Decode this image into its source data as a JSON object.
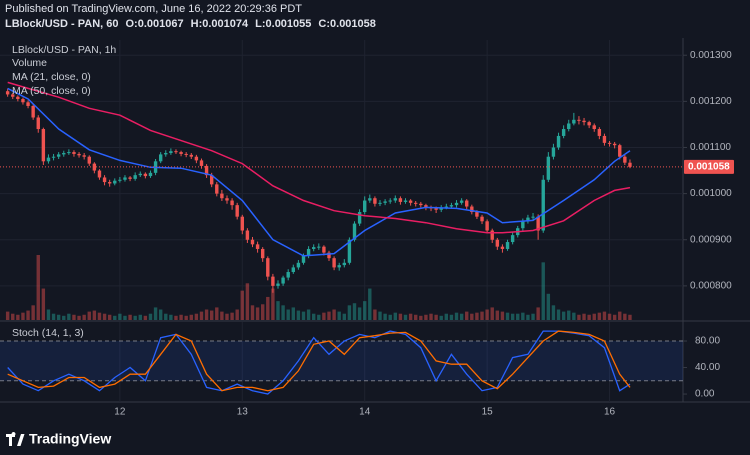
{
  "header": {
    "published": "Published on TradingView.com, June 16, 2022 20:29:36 PDT",
    "symbol": "LBlock/USD - PAN, 60",
    "ohlc": [
      {
        "key": "O:",
        "value": 0.001067
      },
      {
        "key": "H:",
        "value": 0.001074
      },
      {
        "key": "L:",
        "value": 0.001055
      },
      {
        "key": "C:",
        "value": 0.001058
      }
    ]
  },
  "footer": {
    "brand": "TradingView"
  },
  "chart_data": [
    {
      "type": "candlestick",
      "legend": "LBlock/USD - PAN, 1h",
      "volume_name": "Volume",
      "up_color": "#26a69a",
      "down_color": "#ef5350",
      "grid": true,
      "ylim": [
        0.000726,
        0.001333
      ],
      "yticks": [
        {
          "value": 0.0013,
          "label": "0.001300"
        },
        {
          "value": 0.0012,
          "label": "0.001200"
        },
        {
          "value": 0.0011,
          "label": "0.001100"
        },
        {
          "value": 0.001,
          "label": "0.001000"
        },
        {
          "value": 0.0009,
          "label": "0.000900"
        },
        {
          "value": 0.0008,
          "label": "0.000800"
        }
      ],
      "xlim": [
        -1.5,
        132.4
      ],
      "xticks": [
        {
          "value": 22,
          "label": "12"
        },
        {
          "value": 46,
          "label": "13"
        },
        {
          "value": 70,
          "label": "14"
        },
        {
          "value": 94,
          "label": "15"
        },
        {
          "value": 118,
          "label": "16"
        }
      ],
      "last_price": 0.001058,
      "ohlc": [
        [
          0.001222,
          0.001228,
          0.00121,
          0.001215
        ],
        [
          0.001215,
          0.001218,
          0.001205,
          0.00121
        ],
        [
          0.00121,
          0.001213,
          0.0012,
          0.001205
        ],
        [
          0.001205,
          0.001208,
          0.001193,
          0.001198
        ],
        [
          0.001198,
          0.001202,
          0.001185,
          0.00119
        ],
        [
          0.00119,
          0.001193,
          0.00116,
          0.001165
        ],
        [
          0.001165,
          0.00117,
          0.001132,
          0.00114
        ],
        [
          0.00114,
          0.001143,
          0.001062,
          0.00107
        ],
        [
          0.00107,
          0.001085,
          0.001065,
          0.001078
        ],
        [
          0.001078,
          0.001086,
          0.001072,
          0.00108
        ],
        [
          0.00108,
          0.00109,
          0.001075,
          0.001085
        ],
        [
          0.001085,
          0.001093,
          0.00108,
          0.001088
        ],
        [
          0.001088,
          0.001096,
          0.001084,
          0.00109
        ],
        [
          0.00109,
          0.001094,
          0.00108,
          0.001086
        ],
        [
          0.001086,
          0.00109,
          0.001078,
          0.001083
        ],
        [
          0.001083,
          0.001088,
          0.001074,
          0.00108
        ],
        [
          0.00108,
          0.001083,
          0.00106,
          0.001065
        ],
        [
          0.001065,
          0.001068,
          0.001044,
          0.00105
        ],
        [
          0.00105,
          0.001053,
          0.00103,
          0.001035
        ],
        [
          0.001035,
          0.00104,
          0.001018,
          0.001025
        ],
        [
          0.001025,
          0.00103,
          0.001015,
          0.001022
        ],
        [
          0.001022,
          0.001033,
          0.001018,
          0.001028
        ],
        [
          0.001028,
          0.001036,
          0.001024,
          0.00103
        ],
        [
          0.00103,
          0.00104,
          0.001026,
          0.001035
        ],
        [
          0.001035,
          0.001038,
          0.001027,
          0.001032
        ],
        [
          0.001032,
          0.001046,
          0.001028,
          0.00104
        ],
        [
          0.00104,
          0.001048,
          0.001036,
          0.001043
        ],
        [
          0.001043,
          0.001046,
          0.001033,
          0.001038
        ],
        [
          0.001038,
          0.00105,
          0.001034,
          0.001045
        ],
        [
          0.001045,
          0.001075,
          0.00104,
          0.00107
        ],
        [
          0.00107,
          0.00109,
          0.001066,
          0.001085
        ],
        [
          0.001085,
          0.001094,
          0.00108,
          0.001088
        ],
        [
          0.001088,
          0.001098,
          0.001084,
          0.001092
        ],
        [
          0.001092,
          0.001096,
          0.001086,
          0.00109
        ],
        [
          0.00109,
          0.001093,
          0.001081,
          0.001086
        ],
        [
          0.001086,
          0.00109,
          0.001079,
          0.001084
        ],
        [
          0.001084,
          0.001088,
          0.001075,
          0.00108
        ],
        [
          0.00108,
          0.001084,
          0.001066,
          0.001072
        ],
        [
          0.001072,
          0.001076,
          0.001054,
          0.00106
        ],
        [
          0.00106,
          0.001064,
          0.001034,
          0.00104
        ],
        [
          0.00104,
          0.001045,
          0.001014,
          0.00102
        ],
        [
          0.00102,
          0.001025,
          0.000994,
          0.001
        ],
        [
          0.001,
          0.001008,
          0.000984,
          0.00099
        ],
        [
          0.00099,
          0.000996,
          0.000978,
          0.000985
        ],
        [
          0.000985,
          0.00099,
          0.000965,
          0.000975
        ],
        [
          0.000975,
          0.00098,
          0.000944,
          0.00095
        ],
        [
          0.00095,
          0.000954,
          0.000912,
          0.00092
        ],
        [
          0.00092,
          0.000925,
          0.000893,
          0.0009
        ],
        [
          0.0009,
          0.000906,
          0.000884,
          0.00089
        ],
        [
          0.00089,
          0.000896,
          0.000872,
          0.00088
        ],
        [
          0.00088,
          0.000884,
          0.000852,
          0.00086
        ],
        [
          0.00086,
          0.000864,
          0.000812,
          0.00082
        ],
        [
          0.00082,
          0.000826,
          0.000785,
          0.0008
        ],
        [
          0.0008,
          0.000812,
          0.000794,
          0.000805
        ],
        [
          0.000805,
          0.000822,
          0.0008,
          0.000818
        ],
        [
          0.000818,
          0.000836,
          0.000812,
          0.00083
        ],
        [
          0.00083,
          0.000846,
          0.000826,
          0.00084
        ],
        [
          0.00084,
          0.000856,
          0.000835,
          0.00085
        ],
        [
          0.00085,
          0.00087,
          0.000846,
          0.000865
        ],
        [
          0.000865,
          0.000886,
          0.00086,
          0.00088
        ],
        [
          0.00088,
          0.00089,
          0.000875,
          0.000884
        ],
        [
          0.000884,
          0.000892,
          0.000878,
          0.000885
        ],
        [
          0.000885,
          0.000888,
          0.000866,
          0.000872
        ],
        [
          0.000872,
          0.000876,
          0.000854,
          0.00086
        ],
        [
          0.00086,
          0.000864,
          0.000834,
          0.00084
        ],
        [
          0.00084,
          0.00085,
          0.000833,
          0.000845
        ],
        [
          0.000845,
          0.000858,
          0.00084,
          0.00085
        ],
        [
          0.00085,
          0.000905,
          0.000846,
          0.0009
        ],
        [
          0.0009,
          0.00094,
          0.000896,
          0.000935
        ],
        [
          0.000935,
          0.000966,
          0.00093,
          0.00096
        ],
        [
          0.00096,
          0.000994,
          0.000955,
          0.000985
        ],
        [
          0.000985,
          0.000998,
          0.00098,
          0.00099
        ],
        [
          0.00099,
          0.000994,
          0.000972,
          0.000978
        ],
        [
          0.000978,
          0.000986,
          0.000973,
          0.00098
        ],
        [
          0.00098,
          0.000988,
          0.000975,
          0.000983
        ],
        [
          0.000983,
          0.00099,
          0.000978,
          0.000985
        ],
        [
          0.000985,
          0.000996,
          0.00098,
          0.00099
        ],
        [
          0.00099,
          0.000994,
          0.000976,
          0.000982
        ],
        [
          0.000982,
          0.00099,
          0.000978,
          0.000985
        ],
        [
          0.000985,
          0.000988,
          0.000974,
          0.00098
        ],
        [
          0.00098,
          0.000984,
          0.000972,
          0.000978
        ],
        [
          0.000978,
          0.000982,
          0.00097,
          0.000975
        ],
        [
          0.000975,
          0.000978,
          0.000964,
          0.00097
        ],
        [
          0.00097,
          0.000974,
          0.000962,
          0.000968
        ],
        [
          0.000968,
          0.000972,
          0.000958,
          0.000965
        ],
        [
          0.000965,
          0.000975,
          0.00096,
          0.00097
        ],
        [
          0.00097,
          0.000978,
          0.000966,
          0.000972
        ],
        [
          0.000972,
          0.00098,
          0.000968,
          0.000975
        ],
        [
          0.000975,
          0.000986,
          0.00097,
          0.00098
        ],
        [
          0.00098,
          0.00099,
          0.000976,
          0.000985
        ],
        [
          0.000985,
          0.000988,
          0.000966,
          0.000972
        ],
        [
          0.000972,
          0.000976,
          0.000955,
          0.00096
        ],
        [
          0.00096,
          0.000964,
          0.000945,
          0.00095
        ],
        [
          0.00095,
          0.000954,
          0.000934,
          0.00094
        ],
        [
          0.00094,
          0.000944,
          0.000914,
          0.00092
        ],
        [
          0.00092,
          0.000924,
          0.000893,
          0.0009
        ],
        [
          0.0009,
          0.000904,
          0.000878,
          0.000885
        ],
        [
          0.000885,
          0.00089,
          0.000872,
          0.00088
        ],
        [
          0.00088,
          0.0009,
          0.000876,
          0.000895
        ],
        [
          0.000895,
          0.000916,
          0.00089,
          0.00091
        ],
        [
          0.00091,
          0.00093,
          0.000905,
          0.000925
        ],
        [
          0.000925,
          0.000946,
          0.00092,
          0.00094
        ],
        [
          0.00094,
          0.000954,
          0.000935,
          0.000948
        ],
        [
          0.000948,
          0.000958,
          0.000943,
          0.00095
        ],
        [
          0.00095,
          0.000955,
          0.0009,
          0.00092
        ],
        [
          0.00092,
          0.00104,
          0.000915,
          0.00103
        ],
        [
          0.00103,
          0.00109,
          0.001025,
          0.00108
        ],
        [
          0.00108,
          0.001108,
          0.001074,
          0.0011
        ],
        [
          0.0011,
          0.001132,
          0.001095,
          0.001125
        ],
        [
          0.001125,
          0.001148,
          0.00112,
          0.00114
        ],
        [
          0.00114,
          0.00116,
          0.001135,
          0.001152
        ],
        [
          0.001152,
          0.001175,
          0.001148,
          0.00116
        ],
        [
          0.00116,
          0.001168,
          0.00115,
          0.001158
        ],
        [
          0.001158,
          0.001164,
          0.001148,
          0.001155
        ],
        [
          0.001155,
          0.001158,
          0.001142,
          0.001148
        ],
        [
          0.001148,
          0.001152,
          0.001134,
          0.00114
        ],
        [
          0.00114,
          0.001144,
          0.001118,
          0.001125
        ],
        [
          0.001125,
          0.00113,
          0.001104,
          0.00111
        ],
        [
          0.00111,
          0.001114,
          0.001102,
          0.001108
        ],
        [
          0.001108,
          0.001112,
          0.001098,
          0.001105
        ],
        [
          0.001105,
          0.001108,
          0.001074,
          0.00108
        ],
        [
          0.00108,
          0.001084,
          0.001062,
          0.001067
        ],
        [
          0.001067,
          0.001074,
          0.001055,
          0.001058
        ]
      ],
      "volume": [
        8,
        6,
        5,
        7,
        9,
        14,
        62,
        30,
        10,
        6,
        5,
        4,
        6,
        5,
        4,
        5,
        8,
        9,
        7,
        6,
        5,
        4,
        6,
        4,
        5,
        4,
        5,
        4,
        6,
        12,
        10,
        6,
        5,
        4,
        5,
        4,
        5,
        6,
        8,
        10,
        9,
        12,
        8,
        6,
        7,
        10,
        28,
        35,
        14,
        12,
        15,
        22,
        30,
        18,
        14,
        10,
        12,
        9,
        8,
        10,
        6,
        5,
        7,
        8,
        10,
        8,
        6,
        14,
        16,
        12,
        18,
        30,
        10,
        8,
        6,
        5,
        7,
        6,
        5,
        6,
        5,
        4,
        5,
        6,
        5,
        4,
        6,
        5,
        7,
        6,
        8,
        6,
        7,
        8,
        10,
        12,
        9,
        8,
        7,
        6,
        6,
        7,
        5,
        6,
        12,
        55,
        25,
        14,
        10,
        8,
        9,
        7,
        5,
        6,
        5,
        6,
        7,
        8,
        6,
        5,
        8,
        6,
        5
      ],
      "series": [
        {
          "name": "MA (21, close, 0)",
          "color": "#2962ff",
          "x": [
            0,
            4,
            10,
            16,
            22,
            28,
            34,
            40,
            46,
            52,
            58,
            64,
            70,
            76,
            82,
            88,
            94,
            97,
            103,
            109,
            115,
            119,
            122
          ],
          "values": [
            0.001228,
            0.001205,
            0.00114,
            0.001095,
            0.001072,
            0.001057,
            0.001055,
            0.00104,
            0.000985,
            0.0009,
            0.000865,
            0.00087,
            0.00092,
            0.000958,
            0.00097,
            0.000968,
            0.000958,
            0.000937,
            0.000942,
            0.000985,
            0.00103,
            0.00107,
            0.001093
          ]
        },
        {
          "name": "MA (50, close, 0)",
          "color": "#e91e63",
          "x": [
            0,
            4,
            10,
            16,
            22,
            28,
            34,
            40,
            46,
            52,
            58,
            64,
            70,
            76,
            82,
            88,
            94,
            97,
            103,
            109,
            115,
            119,
            122
          ],
          "values": [
            0.001241,
            0.001228,
            0.001209,
            0.001185,
            0.00117,
            0.001137,
            0.001115,
            0.001093,
            0.001065,
            0.001017,
            0.000985,
            0.000963,
            0.000952,
            0.000946,
            0.000937,
            0.000924,
            0.000915,
            0.000915,
            0.00092,
            0.000941,
            0.000985,
            0.001007,
            0.001013
          ]
        }
      ]
    },
    {
      "type": "stoch",
      "title": "Stoch (14, 1, 3)",
      "ylim": [
        -12,
        108.7
      ],
      "yticks": [
        {
          "value": 80,
          "label": "80.00"
        },
        {
          "value": 40,
          "label": "40.00"
        },
        {
          "value": 0,
          "label": "0.00"
        }
      ],
      "band": [
        20,
        80
      ],
      "band_color": "#2962ff",
      "x": [
        0,
        3,
        6,
        9,
        12,
        15,
        18,
        21,
        24,
        27,
        30,
        33,
        36,
        39,
        42,
        45,
        48,
        51,
        54,
        57,
        60,
        63,
        66,
        69,
        72,
        75,
        78,
        81,
        84,
        87,
        90,
        93,
        96,
        99,
        102,
        105,
        108,
        111,
        114,
        117,
        120,
        122
      ],
      "series": [
        {
          "color": "#2962ff",
          "values": [
            40,
            15,
            5,
            20,
            30,
            20,
            5,
            25,
            40,
            20,
            85,
            90,
            60,
            10,
            5,
            15,
            5,
            0,
            20,
            50,
            85,
            60,
            80,
            90,
            85,
            95,
            90,
            70,
            20,
            60,
            30,
            5,
            10,
            55,
            60,
            95,
            95,
            92,
            88,
            70,
            5,
            15
          ]
        },
        {
          "color": "#ff6d00",
          "values": [
            30,
            20,
            10,
            12,
            25,
            25,
            10,
            15,
            30,
            30,
            60,
            90,
            80,
            30,
            5,
            10,
            10,
            5,
            10,
            35,
            75,
            80,
            60,
            85,
            88,
            92,
            93,
            80,
            50,
            45,
            45,
            20,
            8,
            30,
            55,
            80,
            95,
            93,
            90,
            80,
            30,
            10
          ]
        }
      ]
    }
  ]
}
